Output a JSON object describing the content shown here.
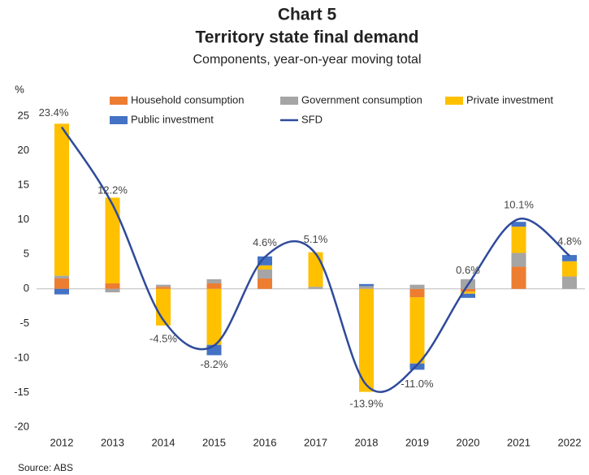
{
  "chart_data": {
    "type": "bar",
    "title": "Chart 5",
    "subtitle": "Territory state final demand",
    "description": "Components, year-on-year moving total",
    "y_label": "%",
    "source": "Source: ABS",
    "categories": [
      "2012",
      "2013",
      "2014",
      "2015",
      "2016",
      "2017",
      "2018",
      "2019",
      "2020",
      "2021",
      "2022"
    ],
    "ylim": [
      -20,
      25
    ],
    "yticks": [
      -20,
      -15,
      -10,
      -5,
      0,
      5,
      10,
      15,
      20,
      25
    ],
    "grid": false,
    "legend": "top",
    "series": [
      {
        "name": "Household consumption",
        "color": "#ed7d31",
        "values": [
          1.5,
          0.8,
          0.3,
          0.8,
          1.5,
          0,
          0,
          -1.2,
          -0.4,
          3.2,
          0
        ]
      },
      {
        "name": "Government consumption",
        "color": "#a5a5a5",
        "values": [
          0.4,
          -0.5,
          0.3,
          0.6,
          1.3,
          0.3,
          0.4,
          0.6,
          1.4,
          2.0,
          1.8
        ]
      },
      {
        "name": "Private investment",
        "color": "#ffc000",
        "values": [
          22.0,
          12.4,
          -5.3,
          -8.1,
          0.6,
          5.0,
          -14.9,
          -9.6,
          -0.3,
          3.8,
          2.2
        ]
      },
      {
        "name": "Public investment",
        "color": "#4472c4",
        "values": [
          -0.8,
          0,
          0,
          -1.5,
          1.3,
          0,
          0.3,
          -0.9,
          -0.6,
          0.7,
          0.9
        ]
      },
      {
        "name": "SFD",
        "color": "#2e4a9b",
        "type": "line",
        "values": [
          23.4,
          12.2,
          -4.5,
          -8.2,
          4.6,
          5.1,
          -13.9,
          -11.0,
          0.6,
          10.1,
          4.8
        ],
        "value_labels": [
          "23.4%",
          "12.2%",
          "-4.5%",
          "-8.2%",
          "4.6%",
          "5.1%",
          "-13.9%",
          "-11.0%",
          "0.6%",
          "10.1%",
          "4.8%"
        ]
      }
    ]
  }
}
